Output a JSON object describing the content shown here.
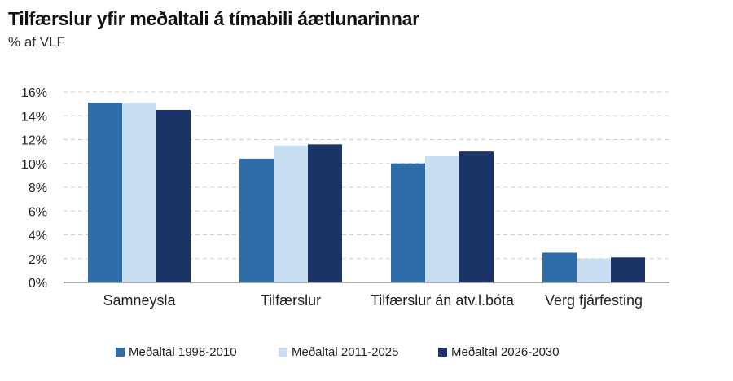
{
  "colors": {
    "series1": "#2e6da8",
    "series2": "#c8dff3",
    "series3": "#1b3468",
    "grid": "#cfcfcf",
    "axis": "#555555"
  },
  "chart_data": {
    "type": "bar",
    "title": "Tilfærslur yfir meðaltali á tímabili áætlunarinnar",
    "subtitle": "% af VLF",
    "categories": [
      "Samneysla",
      "Tilfærslur",
      "Tilfærslur án atv.l.bóta",
      "Verg fjárfesting"
    ],
    "series": [
      {
        "name": "Meðaltal 1998-2010",
        "values": [
          15.1,
          10.4,
          10.0,
          2.5
        ]
      },
      {
        "name": "Meðaltal 2011-2025",
        "values": [
          15.1,
          11.5,
          10.6,
          2.0
        ]
      },
      {
        "name": "Meðaltal 2026-2030",
        "values": [
          14.5,
          11.6,
          11.0,
          2.1
        ]
      }
    ],
    "ylim": [
      0,
      16
    ],
    "yticks": [
      0,
      2,
      4,
      6,
      8,
      10,
      12,
      14,
      16
    ],
    "ytick_labels": [
      "0%",
      "2%",
      "4%",
      "6%",
      "8%",
      "10%",
      "12%",
      "14%",
      "16%"
    ],
    "grid": true,
    "legend_position": "bottom"
  }
}
